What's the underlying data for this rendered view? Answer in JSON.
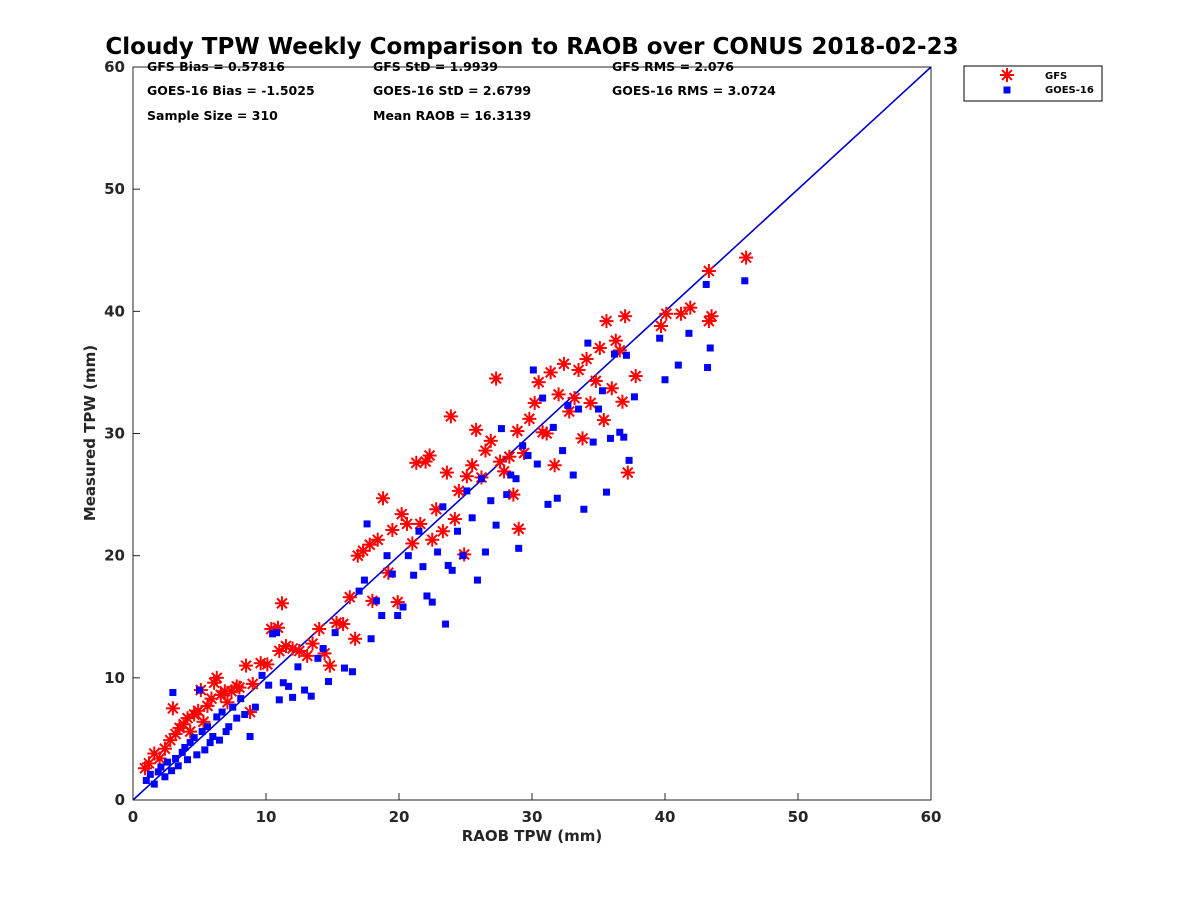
{
  "chart_data": {
    "type": "scatter",
    "title": "Cloudy TPW Weekly Comparison to RAOB over CONUS 2018-02-23",
    "xlabel": "RAOB TPW (mm)",
    "ylabel": "Measured TPW (mm)",
    "xlim": [
      0,
      60
    ],
    "ylim": [
      0,
      60
    ],
    "xticks": [
      0,
      10,
      20,
      30,
      40,
      50,
      60
    ],
    "yticks": [
      0,
      10,
      20,
      30,
      40,
      50,
      60
    ],
    "grid": false,
    "legend_position": "outside top-right",
    "reference_line": {
      "from": [
        0,
        0
      ],
      "to": [
        60,
        60
      ],
      "color": "#0000cc"
    },
    "stats": [
      "GFS Bias = 0.57816",
      "GFS StD = 1.9939",
      "GFS RMS = 2.076",
      "GOES-16 Bias = -1.5025",
      "GOES-16 StD = 2.6799",
      "GOES-16 RMS = 3.0724",
      "Sample Size = 310",
      "Mean RAOB = 16.3139"
    ],
    "series": [
      {
        "name": "GFS",
        "marker": "asterisk",
        "color": "#ff0000",
        "points": [
          [
            0.9,
            2.6
          ],
          [
            1.2,
            3.0
          ],
          [
            1.6,
            3.8
          ],
          [
            2.0,
            3.4
          ],
          [
            2.4,
            4.2
          ],
          [
            2.8,
            4.9
          ],
          [
            3.0,
            7.5
          ],
          [
            3.2,
            5.4
          ],
          [
            3.5,
            5.9
          ],
          [
            3.8,
            6.2
          ],
          [
            4.1,
            6.7
          ],
          [
            4.3,
            5.6
          ],
          [
            4.6,
            7.0
          ],
          [
            4.9,
            7.3
          ],
          [
            5.1,
            9.0
          ],
          [
            5.3,
            6.4
          ],
          [
            5.6,
            7.7
          ],
          [
            5.9,
            8.3
          ],
          [
            6.1,
            9.6
          ],
          [
            6.3,
            10.0
          ],
          [
            6.6,
            8.6
          ],
          [
            6.9,
            8.9
          ],
          [
            7.1,
            8.0
          ],
          [
            7.4,
            8.9
          ],
          [
            7.8,
            9.3
          ],
          [
            8.0,
            9.2
          ],
          [
            8.5,
            11.0
          ],
          [
            8.8,
            7.2
          ],
          [
            9.0,
            9.5
          ],
          [
            9.6,
            11.2
          ],
          [
            10.1,
            11.1
          ],
          [
            10.4,
            14.0
          ],
          [
            10.9,
            14.1
          ],
          [
            11.0,
            12.2
          ],
          [
            11.2,
            16.1
          ],
          [
            11.5,
            12.6
          ],
          [
            12.0,
            12.4
          ],
          [
            12.5,
            12.2
          ],
          [
            13.1,
            11.8
          ],
          [
            13.5,
            12.8
          ],
          [
            14.0,
            14.0
          ],
          [
            14.4,
            12.0
          ],
          [
            14.8,
            11.0
          ],
          [
            15.3,
            14.5
          ],
          [
            15.8,
            14.4
          ],
          [
            16.3,
            16.6
          ],
          [
            16.7,
            13.2
          ],
          [
            16.9,
            20.0
          ],
          [
            17.3,
            20.4
          ],
          [
            17.8,
            20.9
          ],
          [
            18.0,
            16.3
          ],
          [
            18.4,
            21.3
          ],
          [
            18.8,
            24.7
          ],
          [
            19.2,
            18.6
          ],
          [
            19.5,
            22.1
          ],
          [
            19.9,
            16.2
          ],
          [
            20.2,
            23.4
          ],
          [
            20.6,
            22.6
          ],
          [
            21.0,
            21.0
          ],
          [
            21.3,
            27.6
          ],
          [
            21.6,
            22.6
          ],
          [
            22.0,
            27.7
          ],
          [
            22.3,
            28.2
          ],
          [
            22.5,
            21.3
          ],
          [
            22.8,
            23.8
          ],
          [
            23.3,
            22.0
          ],
          [
            23.6,
            26.8
          ],
          [
            23.9,
            31.4
          ],
          [
            24.2,
            23.0
          ],
          [
            24.5,
            25.3
          ],
          [
            24.9,
            20.1
          ],
          [
            25.1,
            26.5
          ],
          [
            25.5,
            27.4
          ],
          [
            25.8,
            30.3
          ],
          [
            26.2,
            26.4
          ],
          [
            26.5,
            28.6
          ],
          [
            26.9,
            29.4
          ],
          [
            27.3,
            34.5
          ],
          [
            27.6,
            27.7
          ],
          [
            27.9,
            26.9
          ],
          [
            28.3,
            28.1
          ],
          [
            28.6,
            25.0
          ],
          [
            28.9,
            30.2
          ],
          [
            29.0,
            22.2
          ],
          [
            29.4,
            28.4
          ],
          [
            29.8,
            31.2
          ],
          [
            30.2,
            32.5
          ],
          [
            30.5,
            34.2
          ],
          [
            30.8,
            30.1
          ],
          [
            31.1,
            30.0
          ],
          [
            31.4,
            35.0
          ],
          [
            31.7,
            27.4
          ],
          [
            32.0,
            33.2
          ],
          [
            32.4,
            35.7
          ],
          [
            32.8,
            31.8
          ],
          [
            33.2,
            32.9
          ],
          [
            33.5,
            35.2
          ],
          [
            33.8,
            29.6
          ],
          [
            34.1,
            36.1
          ],
          [
            34.4,
            32.5
          ],
          [
            34.8,
            34.3
          ],
          [
            35.1,
            37.0
          ],
          [
            35.4,
            31.1
          ],
          [
            35.6,
            39.2
          ],
          [
            36.0,
            33.7
          ],
          [
            36.3,
            37.6
          ],
          [
            36.6,
            36.8
          ],
          [
            36.8,
            32.6
          ],
          [
            37.0,
            39.6
          ],
          [
            37.2,
            26.8
          ],
          [
            37.8,
            34.7
          ],
          [
            39.7,
            38.8
          ],
          [
            40.1,
            39.8
          ],
          [
            41.2,
            39.8
          ],
          [
            41.9,
            40.3
          ],
          [
            43.3,
            43.3
          ],
          [
            43.3,
            39.2
          ],
          [
            43.5,
            39.6
          ],
          [
            46.1,
            44.4
          ]
        ]
      },
      {
        "name": "GOES-16",
        "marker": "square",
        "color": "#0000ff",
        "points": [
          [
            1.0,
            1.6
          ],
          [
            1.3,
            2.1
          ],
          [
            1.6,
            1.3
          ],
          [
            1.9,
            2.3
          ],
          [
            2.1,
            2.7
          ],
          [
            2.4,
            1.9
          ],
          [
            2.6,
            3.1
          ],
          [
            2.9,
            2.4
          ],
          [
            3.0,
            8.8
          ],
          [
            3.2,
            3.4
          ],
          [
            3.4,
            2.8
          ],
          [
            3.7,
            3.9
          ],
          [
            3.9,
            4.3
          ],
          [
            4.1,
            3.3
          ],
          [
            4.3,
            4.7
          ],
          [
            4.6,
            5.1
          ],
          [
            4.8,
            3.7
          ],
          [
            5.0,
            9.0
          ],
          [
            5.2,
            5.6
          ],
          [
            5.4,
            4.1
          ],
          [
            5.6,
            6.0
          ],
          [
            5.8,
            4.7
          ],
          [
            6.0,
            5.2
          ],
          [
            6.3,
            6.8
          ],
          [
            6.5,
            4.9
          ],
          [
            6.7,
            7.2
          ],
          [
            7.0,
            5.6
          ],
          [
            7.2,
            6.0
          ],
          [
            7.5,
            7.6
          ],
          [
            7.8,
            6.7
          ],
          [
            8.1,
            8.3
          ],
          [
            8.4,
            7.0
          ],
          [
            8.8,
            5.2
          ],
          [
            9.2,
            7.6
          ],
          [
            9.7,
            10.2
          ],
          [
            10.2,
            9.4
          ],
          [
            10.5,
            13.6
          ],
          [
            10.8,
            13.7
          ],
          [
            11.0,
            8.2
          ],
          [
            11.3,
            9.6
          ],
          [
            11.7,
            9.3
          ],
          [
            12.0,
            8.4
          ],
          [
            12.4,
            10.9
          ],
          [
            12.9,
            9.0
          ],
          [
            13.4,
            8.5
          ],
          [
            13.9,
            11.6
          ],
          [
            14.3,
            12.4
          ],
          [
            14.7,
            9.7
          ],
          [
            15.2,
            13.7
          ],
          [
            15.9,
            10.8
          ],
          [
            16.5,
            10.5
          ],
          [
            17.0,
            17.1
          ],
          [
            17.4,
            18.0
          ],
          [
            17.6,
            22.6
          ],
          [
            17.9,
            13.2
          ],
          [
            18.3,
            16.3
          ],
          [
            18.7,
            15.1
          ],
          [
            19.1,
            20.0
          ],
          [
            19.5,
            18.5
          ],
          [
            19.9,
            15.1
          ],
          [
            20.3,
            15.8
          ],
          [
            20.7,
            20.0
          ],
          [
            21.1,
            18.4
          ],
          [
            21.5,
            22.0
          ],
          [
            21.8,
            19.1
          ],
          [
            22.1,
            16.7
          ],
          [
            22.5,
            16.2
          ],
          [
            22.9,
            20.3
          ],
          [
            23.3,
            24.0
          ],
          [
            23.5,
            14.4
          ],
          [
            23.7,
            19.2
          ],
          [
            24.0,
            18.8
          ],
          [
            24.4,
            22.0
          ],
          [
            24.8,
            20.0
          ],
          [
            25.1,
            25.3
          ],
          [
            25.5,
            23.1
          ],
          [
            25.9,
            18.0
          ],
          [
            26.2,
            26.3
          ],
          [
            26.5,
            20.3
          ],
          [
            26.9,
            24.5
          ],
          [
            27.3,
            22.5
          ],
          [
            27.7,
            30.4
          ],
          [
            28.1,
            25.0
          ],
          [
            28.4,
            26.6
          ],
          [
            28.8,
            26.3
          ],
          [
            29.0,
            20.6
          ],
          [
            29.3,
            29.0
          ],
          [
            29.7,
            28.2
          ],
          [
            30.1,
            35.2
          ],
          [
            30.4,
            27.5
          ],
          [
            30.8,
            32.9
          ],
          [
            31.2,
            24.2
          ],
          [
            31.6,
            30.5
          ],
          [
            31.9,
            24.7
          ],
          [
            32.3,
            28.6
          ],
          [
            32.7,
            32.3
          ],
          [
            33.1,
            26.6
          ],
          [
            33.5,
            32.0
          ],
          [
            33.9,
            23.8
          ],
          [
            34.2,
            37.4
          ],
          [
            34.6,
            29.3
          ],
          [
            35.0,
            32.0
          ],
          [
            35.3,
            33.5
          ],
          [
            35.6,
            25.2
          ],
          [
            35.9,
            29.6
          ],
          [
            36.2,
            36.5
          ],
          [
            36.6,
            30.1
          ],
          [
            36.9,
            29.7
          ],
          [
            37.1,
            36.4
          ],
          [
            37.3,
            27.8
          ],
          [
            37.7,
            33.0
          ],
          [
            39.6,
            37.8
          ],
          [
            40.0,
            34.4
          ],
          [
            41.0,
            35.6
          ],
          [
            41.8,
            38.2
          ],
          [
            43.1,
            42.2
          ],
          [
            43.2,
            35.4
          ],
          [
            43.4,
            37.0
          ],
          [
            46.0,
            42.5
          ]
        ]
      }
    ]
  }
}
